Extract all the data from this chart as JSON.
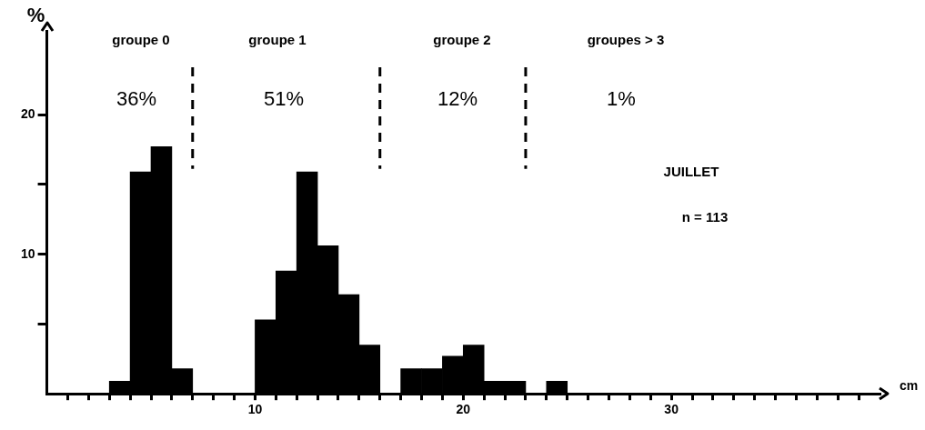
{
  "chart_data": {
    "type": "histogram",
    "xlabel": "cm",
    "ylabel": "%",
    "bins": [
      3,
      4,
      5,
      6,
      7,
      8,
      9,
      10,
      11,
      12,
      13,
      14,
      15,
      16,
      17,
      18,
      19,
      20,
      21,
      22,
      23,
      24,
      25
    ],
    "values": [
      0.9,
      15.9,
      17.7,
      1.8,
      0,
      0,
      0,
      5.3,
      8.8,
      15.9,
      10.6,
      7.1,
      3.5,
      0,
      1.8,
      1.8,
      2.7,
      3.5,
      0.9,
      0.9,
      0,
      0.9
    ],
    "color": "#000000",
    "xlim": [
      0,
      40
    ],
    "xticks": [
      {
        "value": 1,
        "label": null
      },
      {
        "value": 2,
        "label": null
      },
      {
        "value": 3,
        "label": null
      },
      {
        "value": 4,
        "label": null
      },
      {
        "value": 5,
        "label": null
      },
      {
        "value": 6,
        "label": null
      },
      {
        "value": 7,
        "label": null
      },
      {
        "value": 8,
        "label": null
      },
      {
        "value": 9,
        "label": null
      },
      10,
      {
        "value": 11,
        "label": null
      },
      {
        "value": 12,
        "label": null
      },
      {
        "value": 13,
        "label": null
      },
      {
        "value": 14,
        "label": null
      },
      {
        "value": 15,
        "label": null
      },
      {
        "value": 16,
        "label": null
      },
      {
        "value": 17,
        "label": null
      },
      {
        "value": 18,
        "label": null
      },
      {
        "value": 19,
        "label": null
      },
      20,
      {
        "value": 21,
        "label": null
      },
      {
        "value": 22,
        "label": null
      },
      {
        "value": 23,
        "label": null
      },
      {
        "value": 24,
        "label": null
      },
      {
        "value": 25,
        "label": null
      },
      {
        "value": 26,
        "label": null
      },
      {
        "value": 27,
        "label": null
      },
      {
        "value": 28,
        "label": null
      },
      {
        "value": 29,
        "label": null
      },
      30,
      {
        "value": 31,
        "label": null
      },
      {
        "value": 32,
        "label": null
      },
      {
        "value": 33,
        "label": null
      },
      {
        "value": 34,
        "label": null
      },
      {
        "value": 35,
        "label": null
      },
      {
        "value": 36,
        "label": null
      },
      {
        "value": 37,
        "label": null
      },
      {
        "value": 38,
        "label": null
      },
      {
        "value": 39,
        "label": null
      }
    ],
    "ylim": [
      0,
      26
    ],
    "yticks": [
      {
        "value": 5,
        "label": null
      },
      10,
      {
        "value": 15,
        "label": null
      },
      20
    ],
    "grid": false,
    "legend": false,
    "ref_lines": [
      {
        "axis": "x",
        "value": 7,
        "line_style": "dashed"
      },
      {
        "axis": "x",
        "value": 16,
        "line_style": "dashed"
      },
      {
        "axis": "x",
        "value": 23,
        "line_style": "dashed"
      }
    ],
    "annotations": [
      "groupe 0",
      "groupe 1",
      "groupe 2",
      "groupes > 3",
      "36%",
      "51%",
      "12%",
      "1%",
      "JUILLET",
      "n = 113"
    ]
  }
}
